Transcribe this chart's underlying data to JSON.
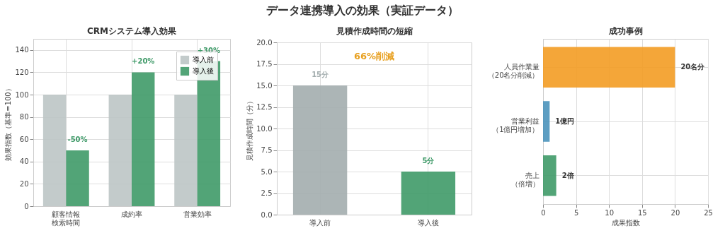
{
  "chart_data": [
    {
      "type": "bar",
      "title": "CRMシステム導入効果",
      "annotations": [
        "データ連携導入の効果（実証データ）",
        {
          "text": "-50%",
          "x": "顧客情報検索時間",
          "y": 50
        },
        {
          "text": "+20%",
          "x": "成約率",
          "y": 120
        },
        {
          "text": "+30%",
          "x": "営業効率",
          "y": 130
        }
      ],
      "ylabel": "効果指数（基準=100）",
      "categories": [
        "顧客情報検索時間",
        "成約率",
        "営業効率"
      ],
      "series": [
        {
          "name": "導入前",
          "color": "#bdc5c5",
          "values": [
            100,
            100,
            100
          ]
        },
        {
          "name": "導入後",
          "color": "#3f9a68",
          "values": [
            50,
            120,
            130
          ]
        }
      ],
      "ylim": [
        0,
        150
      ],
      "yticks": [
        0,
        20,
        40,
        60,
        80,
        100,
        120,
        140
      ],
      "grid": true,
      "legend": "top right"
    },
    {
      "type": "bar",
      "title": "見積作成時間の短縮",
      "annotations": [
        "66%削減"
      ],
      "ylabel": "見積作成時間（分）",
      "categories": [
        "導入前",
        "導入後"
      ],
      "values": [
        15,
        5
      ],
      "colors": [
        "#a3adae",
        "#3f9a68"
      ],
      "value_labels": [
        "15分",
        "5分"
      ],
      "ylim": [
        0,
        20
      ],
      "yticks": [
        {
          "value": 0,
          "label": "0.0"
        },
        {
          "value": 2.5,
          "label": "2.5"
        },
        {
          "value": 5,
          "label": "5.0"
        },
        {
          "value": 7.5,
          "label": "7.5"
        },
        {
          "value": 10,
          "label": "10.0"
        },
        {
          "value": 12.5,
          "label": "12.5"
        },
        {
          "value": 15,
          "label": "15.0"
        },
        {
          "value": 17.5,
          "label": "17.5"
        },
        {
          "value": 20,
          "label": "20.0"
        }
      ],
      "grid": true
    },
    {
      "type": "bar",
      "orientation": "horizontal",
      "title": "成功事例",
      "xlabel": "成果指数",
      "categories": [
        "人員作業量（20名分削減）",
        "営業利益（1億円増加）",
        "売上（倍増）"
      ],
      "values": [
        20,
        1,
        2
      ],
      "colors": [
        "#f39c24",
        "#4b93bb",
        "#3f9a68"
      ],
      "value_labels": [
        "20名分",
        "1億円",
        "2倍"
      ],
      "xlim": [
        0,
        25
      ],
      "xticks": [
        0,
        5,
        10,
        15,
        20,
        25
      ],
      "grid": true
    }
  ]
}
